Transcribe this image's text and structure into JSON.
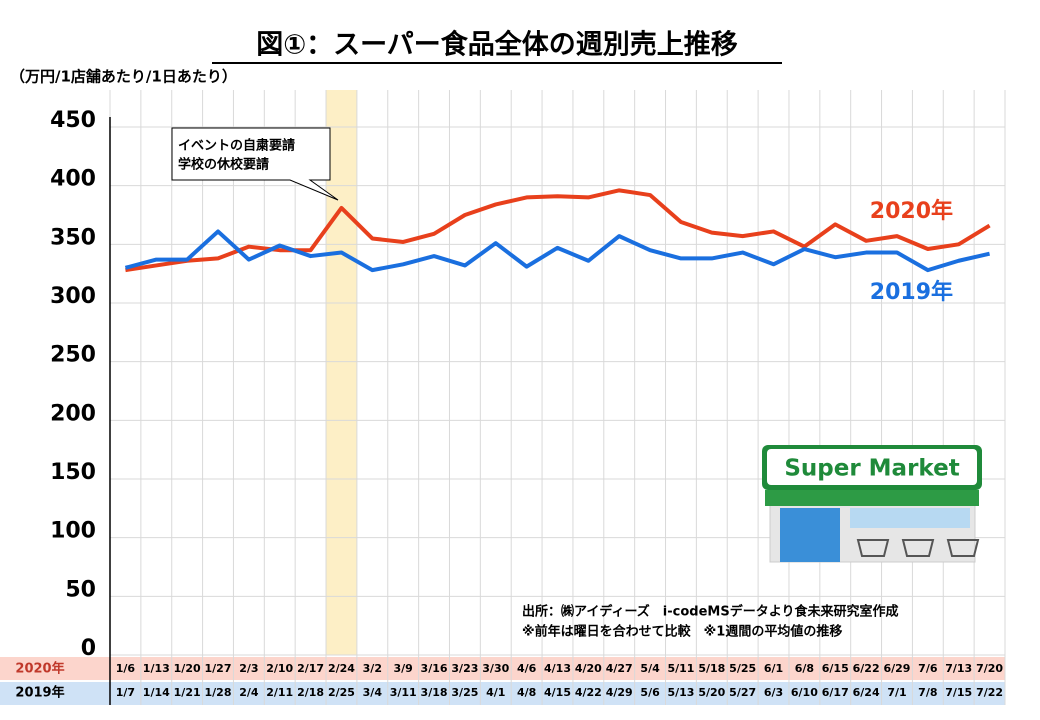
{
  "chart_data": {
    "type": "line",
    "title": "図①：スーパー食品全体の週別売上推移",
    "y_label": "（万円/1店舗あたり/1日あたり）",
    "categories": [
      "1/6",
      "1/13",
      "1/20",
      "1/27",
      "2/3",
      "2/10",
      "2/17",
      "2/24",
      "3/2",
      "3/9",
      "3/16",
      "3/23",
      "3/30",
      "4/6",
      "4/13",
      "4/20",
      "4/27",
      "5/4",
      "5/11",
      "5/18",
      "5/25",
      "6/1",
      "6/8",
      "6/15",
      "6/22",
      "6/29",
      "7/6",
      "7/13",
      "7/20"
    ],
    "categories_2019": [
      "1/7",
      "1/14",
      "1/21",
      "1/28",
      "2/4",
      "2/11",
      "2/18",
      "2/25",
      "3/4",
      "3/11",
      "3/18",
      "3/25",
      "4/1",
      "4/8",
      "4/15",
      "4/22",
      "4/29",
      "5/6",
      "5/13",
      "5/20",
      "5/27",
      "6/3",
      "6/10",
      "6/17",
      "6/24",
      "7/1",
      "7/8",
      "7/15",
      "7/22"
    ],
    "series": [
      {
        "name": "2020年",
        "color": "#e8401c",
        "values": [
          328,
          332,
          336,
          338,
          348,
          345,
          345,
          381,
          355,
          352,
          359,
          375,
          384,
          390,
          391,
          390,
          396,
          392,
          369,
          360,
          357,
          361,
          348,
          367,
          353,
          357,
          346,
          350,
          366
        ]
      },
      {
        "name": "2019年",
        "color": "#1a6fdf",
        "values": [
          330,
          337,
          337,
          361,
          337,
          349,
          340,
          343,
          328,
          333,
          340,
          332,
          351,
          331,
          347,
          336,
          357,
          345,
          338,
          338,
          343,
          333,
          346,
          339,
          343,
          343,
          328,
          336,
          342
        ]
      }
    ],
    "ylim": [
      0,
      450
    ],
    "yticks": [
      0,
      50,
      100,
      150,
      200,
      250,
      300,
      350,
      400,
      450
    ],
    "grid": true,
    "highlight": "2/24",
    "annotation": [
      "イベントの自粛要請",
      "学校の休校要請"
    ],
    "notes": [
      "出所：㈱アイディーズ　i-codeMSデータより食未来研究室作成",
      "※前年は曜日を合わせて比較　※1週間の平均値の推移"
    ],
    "icon_text": "Super Market"
  }
}
